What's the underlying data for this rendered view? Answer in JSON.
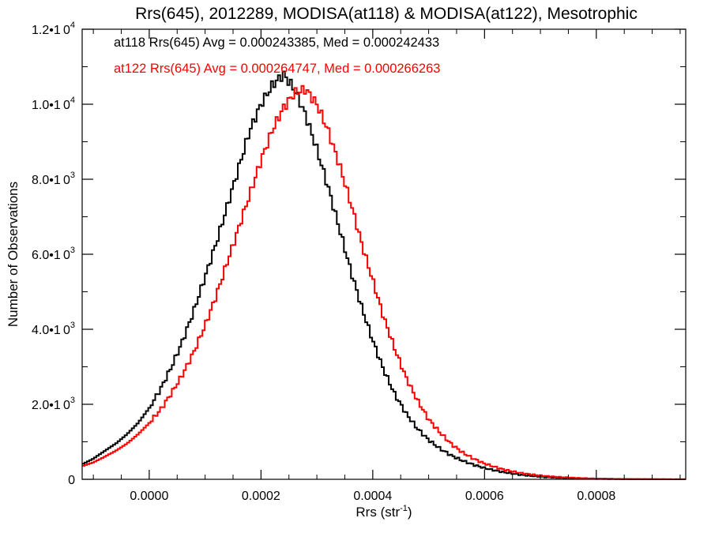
{
  "chart_data": {
    "type": "line",
    "title": "Rrs(645), 2012289, MODISA(at118) & MODISA(at122), Mesotrophic",
    "xlabel": "Rrs (str",
    "xlabel_exp": "-1",
    "xlabel_end": ")",
    "ylabel": "Number of Observations",
    "xlim": [
      -0.00012,
      0.00096
    ],
    "ylim": [
      0,
      12000
    ],
    "grid": false,
    "x_ticks": [
      0.0,
      0.0002,
      0.0004,
      0.0006,
      0.0008
    ],
    "x_tick_labels": [
      "0.0000",
      "0.0002",
      "0.0004",
      "0.0006",
      "0.0008"
    ],
    "y_ticks": [
      0,
      2000,
      4000,
      6000,
      8000,
      10000,
      12000
    ],
    "y_tick_labels": [
      {
        "mant": "0",
        "exp": ""
      },
      {
        "mant": "2.0•1 0",
        "exp": "3"
      },
      {
        "mant": "4.0•1 0",
        "exp": "3"
      },
      {
        "mant": "6.0•1 0",
        "exp": "3"
      },
      {
        "mant": "8.0•1 0",
        "exp": "3"
      },
      {
        "mant": "1.0•1 0",
        "exp": "4"
      },
      {
        "mant": "1.2•1 0",
        "exp": "4"
      }
    ],
    "annotations": [
      {
        "text": "at118 Rrs(645) Avg = 0.000243385, Med = 0.000242433",
        "color": "#000000"
      },
      {
        "text": "at122 Rrs(645) Avg = 0.000264747, Med = 0.000266263",
        "color": "#ff0000"
      }
    ],
    "series": [
      {
        "color": "#000000",
        "x": [
          -0.00012,
          -0.0001,
          -8e-05,
          -6e-05,
          -4e-05,
          -2e-05,
          0.0,
          2e-05,
          4e-05,
          6e-05,
          8e-05,
          0.0001,
          0.00012,
          0.00014,
          0.00016,
          0.00018,
          0.0002,
          0.00022,
          0.00024,
          0.00026,
          0.00028,
          0.0003,
          0.00032,
          0.00034,
          0.00036,
          0.00038,
          0.0004,
          0.00042,
          0.00044,
          0.00046,
          0.00048,
          0.0005,
          0.00052,
          0.00054,
          0.00056,
          0.00058,
          0.0006,
          0.00062,
          0.00064,
          0.00066,
          0.00068,
          0.0007,
          0.00072,
          0.00074,
          0.00076,
          0.00078,
          0.0008,
          0.00085,
          0.0009,
          0.00096
        ],
        "y": [
          400,
          550,
          750,
          950,
          1200,
          1500,
          1900,
          2400,
          3000,
          3700,
          4500,
          5400,
          6300,
          7300,
          8300,
          9300,
          10000,
          10500,
          10800,
          10400,
          9700,
          8800,
          7800,
          6700,
          5600,
          4600,
          3700,
          2900,
          2250,
          1750,
          1350,
          1050,
          820,
          640,
          500,
          390,
          300,
          230,
          175,
          130,
          95,
          70,
          50,
          35,
          25,
          18,
          12,
          5,
          2,
          0
        ]
      },
      {
        "color": "#ff0000",
        "x": [
          -0.00012,
          -0.0001,
          -8e-05,
          -6e-05,
          -4e-05,
          -2e-05,
          0.0,
          2e-05,
          4e-05,
          6e-05,
          8e-05,
          0.0001,
          0.00012,
          0.00014,
          0.00016,
          0.00018,
          0.0002,
          0.00022,
          0.00024,
          0.00026,
          0.00028,
          0.0003,
          0.00032,
          0.00034,
          0.00036,
          0.00038,
          0.0004,
          0.00042,
          0.00044,
          0.00046,
          0.00048,
          0.0005,
          0.00052,
          0.00054,
          0.00056,
          0.00058,
          0.0006,
          0.00062,
          0.00064,
          0.00066,
          0.00068,
          0.0007,
          0.00072,
          0.00074,
          0.00076,
          0.00078,
          0.0008,
          0.00085,
          0.0009,
          0.00096
        ],
        "y": [
          350,
          450,
          600,
          760,
          950,
          1200,
          1500,
          1850,
          2300,
          2800,
          3400,
          4100,
          4900,
          5800,
          6700,
          7600,
          8500,
          9300,
          9900,
          10300,
          10400,
          10000,
          9300,
          8400,
          7400,
          6300,
          5300,
          4300,
          3450,
          2700,
          2100,
          1600,
          1250,
          950,
          720,
          550,
          420,
          320,
          240,
          180,
          135,
          100,
          75,
          55,
          40,
          28,
          20,
          8,
          3,
          0
        ]
      }
    ]
  }
}
